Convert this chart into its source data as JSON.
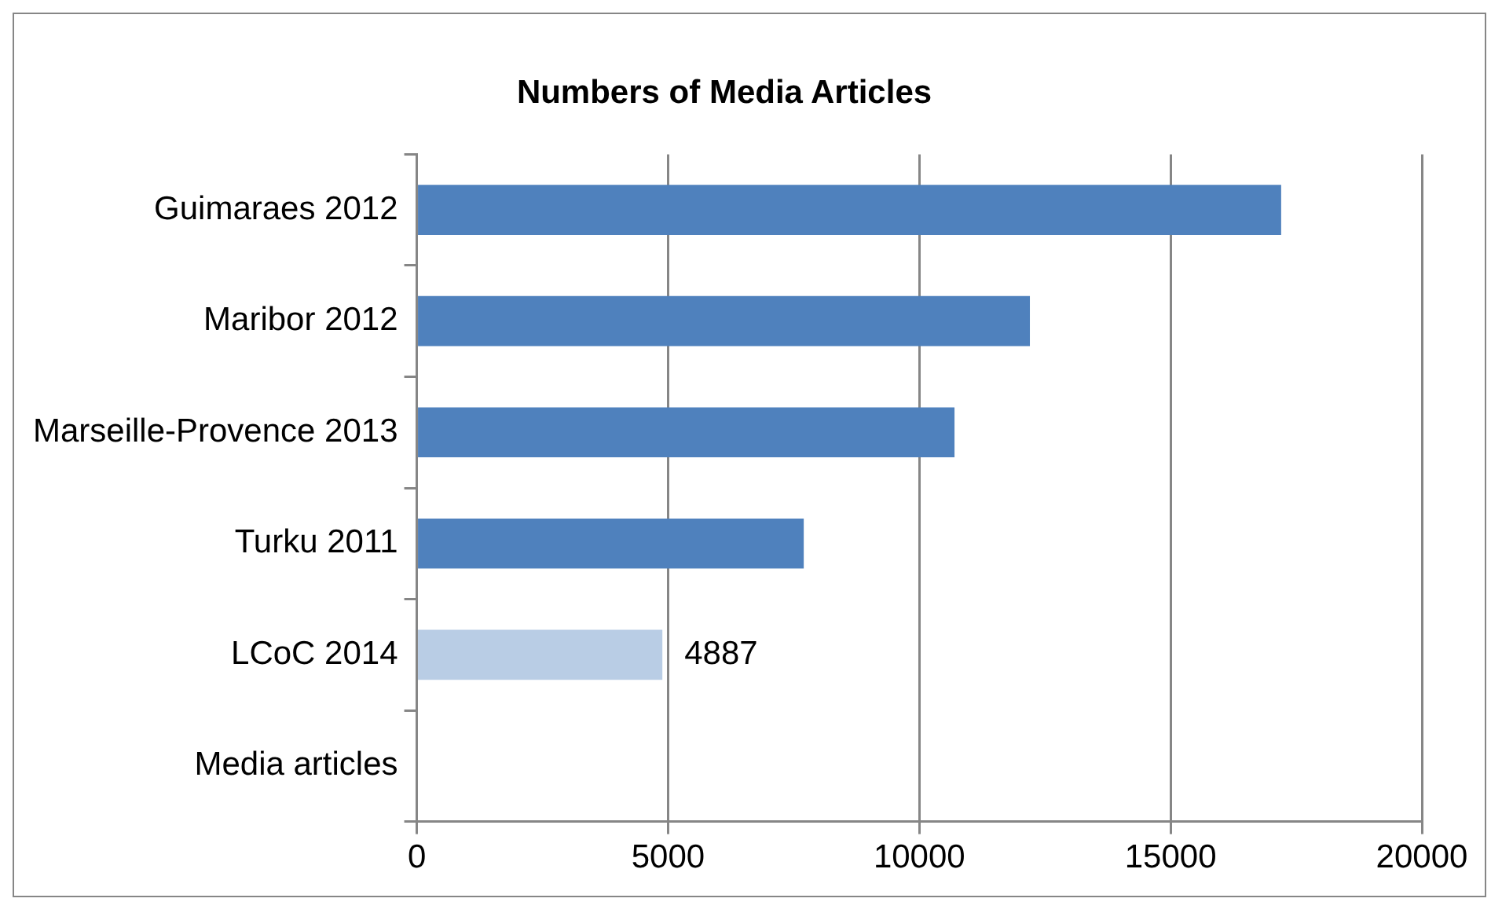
{
  "chart_data": {
    "type": "bar",
    "orientation": "horizontal",
    "title": "Numbers of Media Articles",
    "categories": [
      "Guimaraes 2012",
      "Maribor 2012",
      "Marseille-Provence 2013",
      "Turku 2011",
      "LCoC 2014",
      "Media articles"
    ],
    "values": [
      17200,
      12200,
      10700,
      7700,
      4887,
      null
    ],
    "colors": [
      "#4f81bd",
      "#4f81bd",
      "#4f81bd",
      "#4f81bd",
      "#b9cde5",
      "#4f81bd"
    ],
    "value_labels": [
      null,
      null,
      null,
      null,
      "4887",
      null
    ],
    "xlim": [
      0,
      20000
    ],
    "xticks": [
      0,
      5000,
      10000,
      15000,
      20000
    ],
    "grid": "x",
    "legend": false
  }
}
